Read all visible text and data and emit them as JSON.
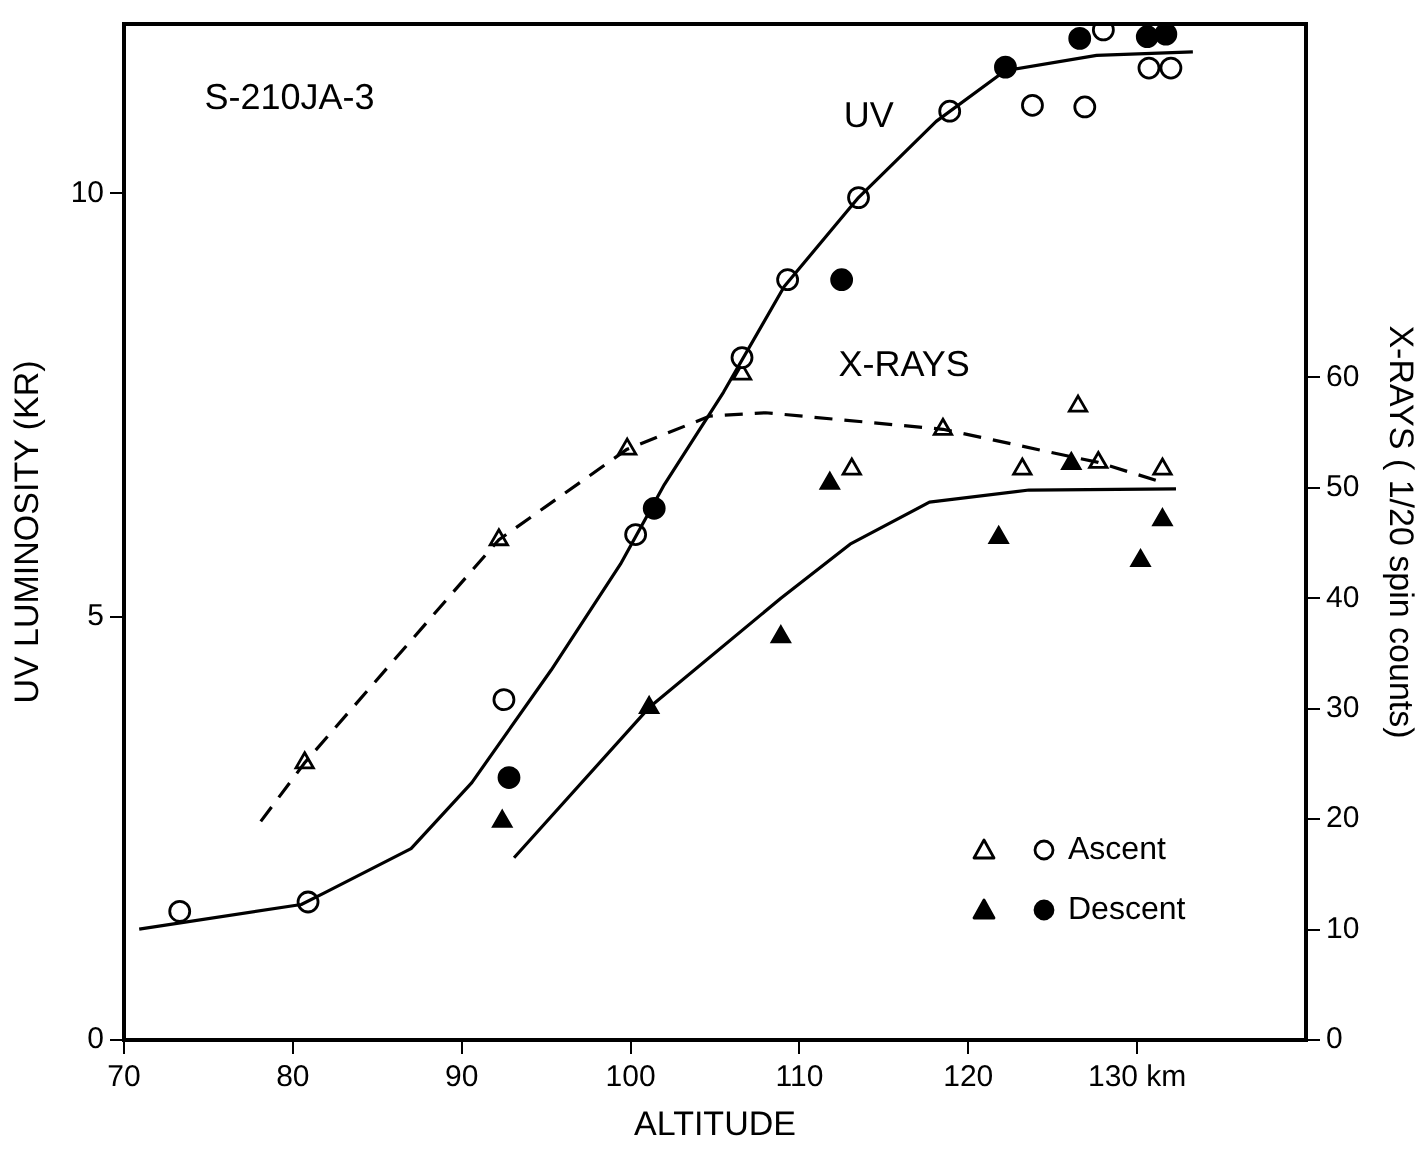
{
  "chart_data": {
    "type": "scatter",
    "xlabel": "ALTITUDE",
    "ylabel": "UV LUMINOSITY (KR)",
    "y2label": "X-RAYS ( 1/20 spin counts)",
    "xlim": [
      70,
      140
    ],
    "xticks": [
      70,
      80,
      90,
      100,
      110,
      120,
      {
        "value": 130,
        "label": "130 km"
      }
    ],
    "ylim": [
      0,
      12
    ],
    "yticks": [
      0,
      5,
      10
    ],
    "y2lim": [
      0,
      92
    ],
    "y2ticks": [
      0,
      10,
      20,
      30,
      40,
      50,
      60
    ],
    "legend": "bottom right",
    "grid": false,
    "annotations": [
      "S-210JA-3",
      "UV",
      "X-RAYS"
    ],
    "series": [
      {
        "type": "line",
        "color": "#000000",
        "marker": "none",
        "line_style": "solid",
        "x": [
          70.9,
          80.5,
          81.9,
          87,
          90.6,
          95.3,
          99.4,
          102,
          105.5,
          109.1,
          113.5,
          118.1,
          122.2,
          127.6,
          133.3
        ],
        "values": [
          1.31,
          1.6,
          1.74,
          2.26,
          3.04,
          4.37,
          5.62,
          6.56,
          7.65,
          8.9,
          9.95,
          10.85,
          11.45,
          11.63,
          11.67
        ]
      },
      {
        "type": "line",
        "axis": "y2",
        "color": "#000000",
        "marker": "none",
        "line_style": "dashed",
        "x": [
          78.1,
          80.7,
          90.6,
          92.2,
          99.8,
          104.7,
          108,
          118.5,
          127.7,
          131.5
        ],
        "values": [
          19.8,
          25.1,
          42.5,
          45.3,
          53.5,
          56.5,
          56.8,
          55.3,
          52.3,
          50.5
        ]
      },
      {
        "type": "line",
        "axis": "y2",
        "color": "#000000",
        "marker": "none",
        "line_style": "solid",
        "x": [
          93.1,
          101.1,
          108.9,
          113,
          117.7,
          123.6,
          132.3
        ],
        "values": [
          16.5,
          30.1,
          40,
          44.9,
          48.7,
          49.8,
          49.9
        ]
      },
      {
        "name": "Ascent",
        "color": "#ffffff",
        "marker": "circle",
        "x": [
          73.3,
          80.9,
          92.5,
          100.3,
          106.6,
          109.3,
          113.5,
          118.9,
          123.8,
          126.9,
          128,
          130.7,
          132
        ],
        "values": [
          1.52,
          1.63,
          4.02,
          5.97,
          8.06,
          8.98,
          9.95,
          10.97,
          11.04,
          11.02,
          11.93,
          11.48,
          11.48
        ]
      },
      {
        "name": "Descent",
        "color": "#000000",
        "marker": "circle",
        "x": [
          92.8,
          101.4,
          112.5,
          122.2,
          126.6,
          130.6,
          131.7
        ],
        "values": [
          3.1,
          6.28,
          8.98,
          11.49,
          11.83,
          11.85,
          11.88
        ]
      },
      {
        "axis": "y2",
        "color": "#ffffff",
        "marker": "triangle",
        "x": [
          80.7,
          92.2,
          99.8,
          106.6,
          113.1,
          118.5,
          123.2,
          126.5,
          127.7,
          131.5
        ],
        "values": [
          25.1,
          45.3,
          53.5,
          60.3,
          51.7,
          55.3,
          51.7,
          57.4,
          52.3,
          51.7
        ]
      },
      {
        "axis": "y2",
        "color": "#000000",
        "marker": "triangle",
        "x": [
          92.4,
          101.1,
          108.9,
          111.8,
          121.8,
          126.1,
          130.2,
          131.5
        ],
        "values": [
          19.8,
          30.1,
          36.5,
          50.4,
          45.5,
          52.2,
          43.4,
          47.1
        ]
      }
    ]
  }
}
